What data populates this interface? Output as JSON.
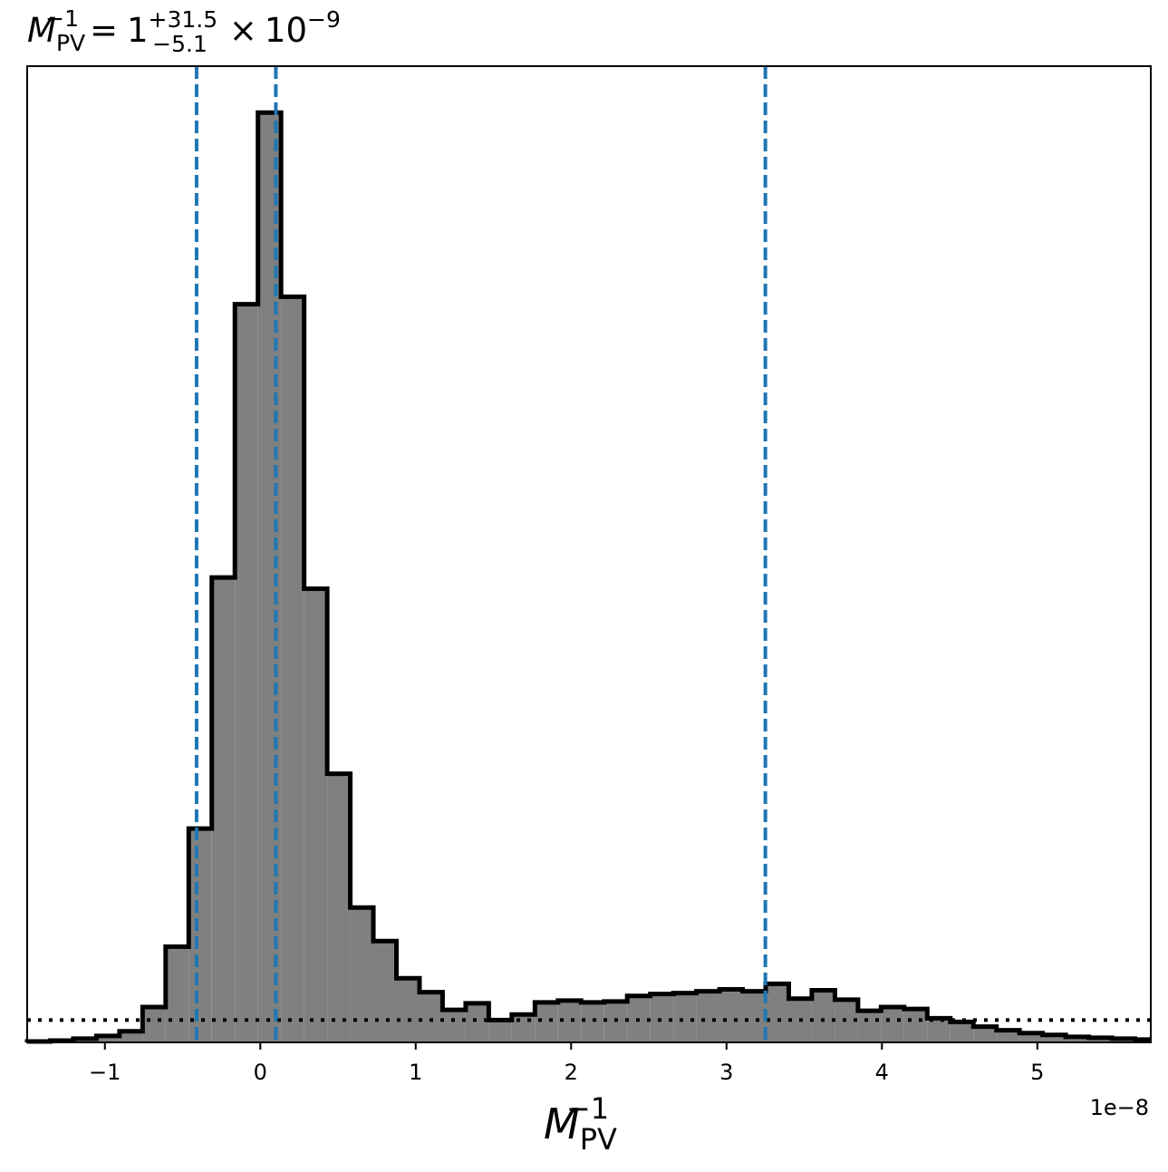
{
  "chart_data": {
    "type": "histogram",
    "title": {
      "symbol": "M",
      "subscript": "PV",
      "superscript": "−1",
      "equals": "=",
      "median": "1",
      "upper_err": "+31.5",
      "lower_err": "−5.1",
      "times": "×",
      "power_base": "10",
      "power_exp": "−9"
    },
    "xlabel": {
      "symbol": "M",
      "subscript": "PV",
      "superscript": "−1"
    },
    "offset_text": "1e−8",
    "xlim": [
      -1.5,
      5.73
    ],
    "ylim": [
      0,
      1.05
    ],
    "x_ticks": [
      {
        "value": -1,
        "label": "−1"
      },
      {
        "value": 0,
        "label": "0"
      },
      {
        "value": 1,
        "label": "1"
      },
      {
        "value": 2,
        "label": "2"
      },
      {
        "value": 3,
        "label": "3"
      },
      {
        "value": 4,
        "label": "4"
      },
      {
        "value": 5,
        "label": "5"
      }
    ],
    "y_ticks_shown": false,
    "bin_start": -1.5,
    "bin_width": 0.1485,
    "counts": [
      0.001,
      0.002,
      0.004,
      0.007,
      0.012,
      0.038,
      0.103,
      0.23,
      0.5,
      0.794,
      1.0,
      0.802,
      0.488,
      0.289,
      0.145,
      0.109,
      0.069,
      0.054,
      0.035,
      0.042,
      0.024,
      0.03,
      0.043,
      0.045,
      0.043,
      0.044,
      0.05,
      0.052,
      0.053,
      0.055,
      0.057,
      0.055,
      0.063,
      0.047,
      0.056,
      0.046,
      0.034,
      0.038,
      0.036,
      0.026,
      0.022,
      0.017,
      0.013,
      0.01,
      0.008,
      0.006,
      0.005,
      0.004,
      0.003
    ],
    "vertical_lines": [
      {
        "x": -0.41,
        "style": "dashed",
        "color": "#1f77b4"
      },
      {
        "x": 0.1,
        "style": "dashed",
        "color": "#1f77b4"
      },
      {
        "x": 3.25,
        "style": "dashed",
        "color": "#1f77b4"
      }
    ],
    "horizontal_lines": [
      {
        "y": 0.024,
        "style": "dotted",
        "color": "#000000"
      }
    ],
    "fill_color": "#808080",
    "edge_color": "#000000",
    "grid": false
  }
}
